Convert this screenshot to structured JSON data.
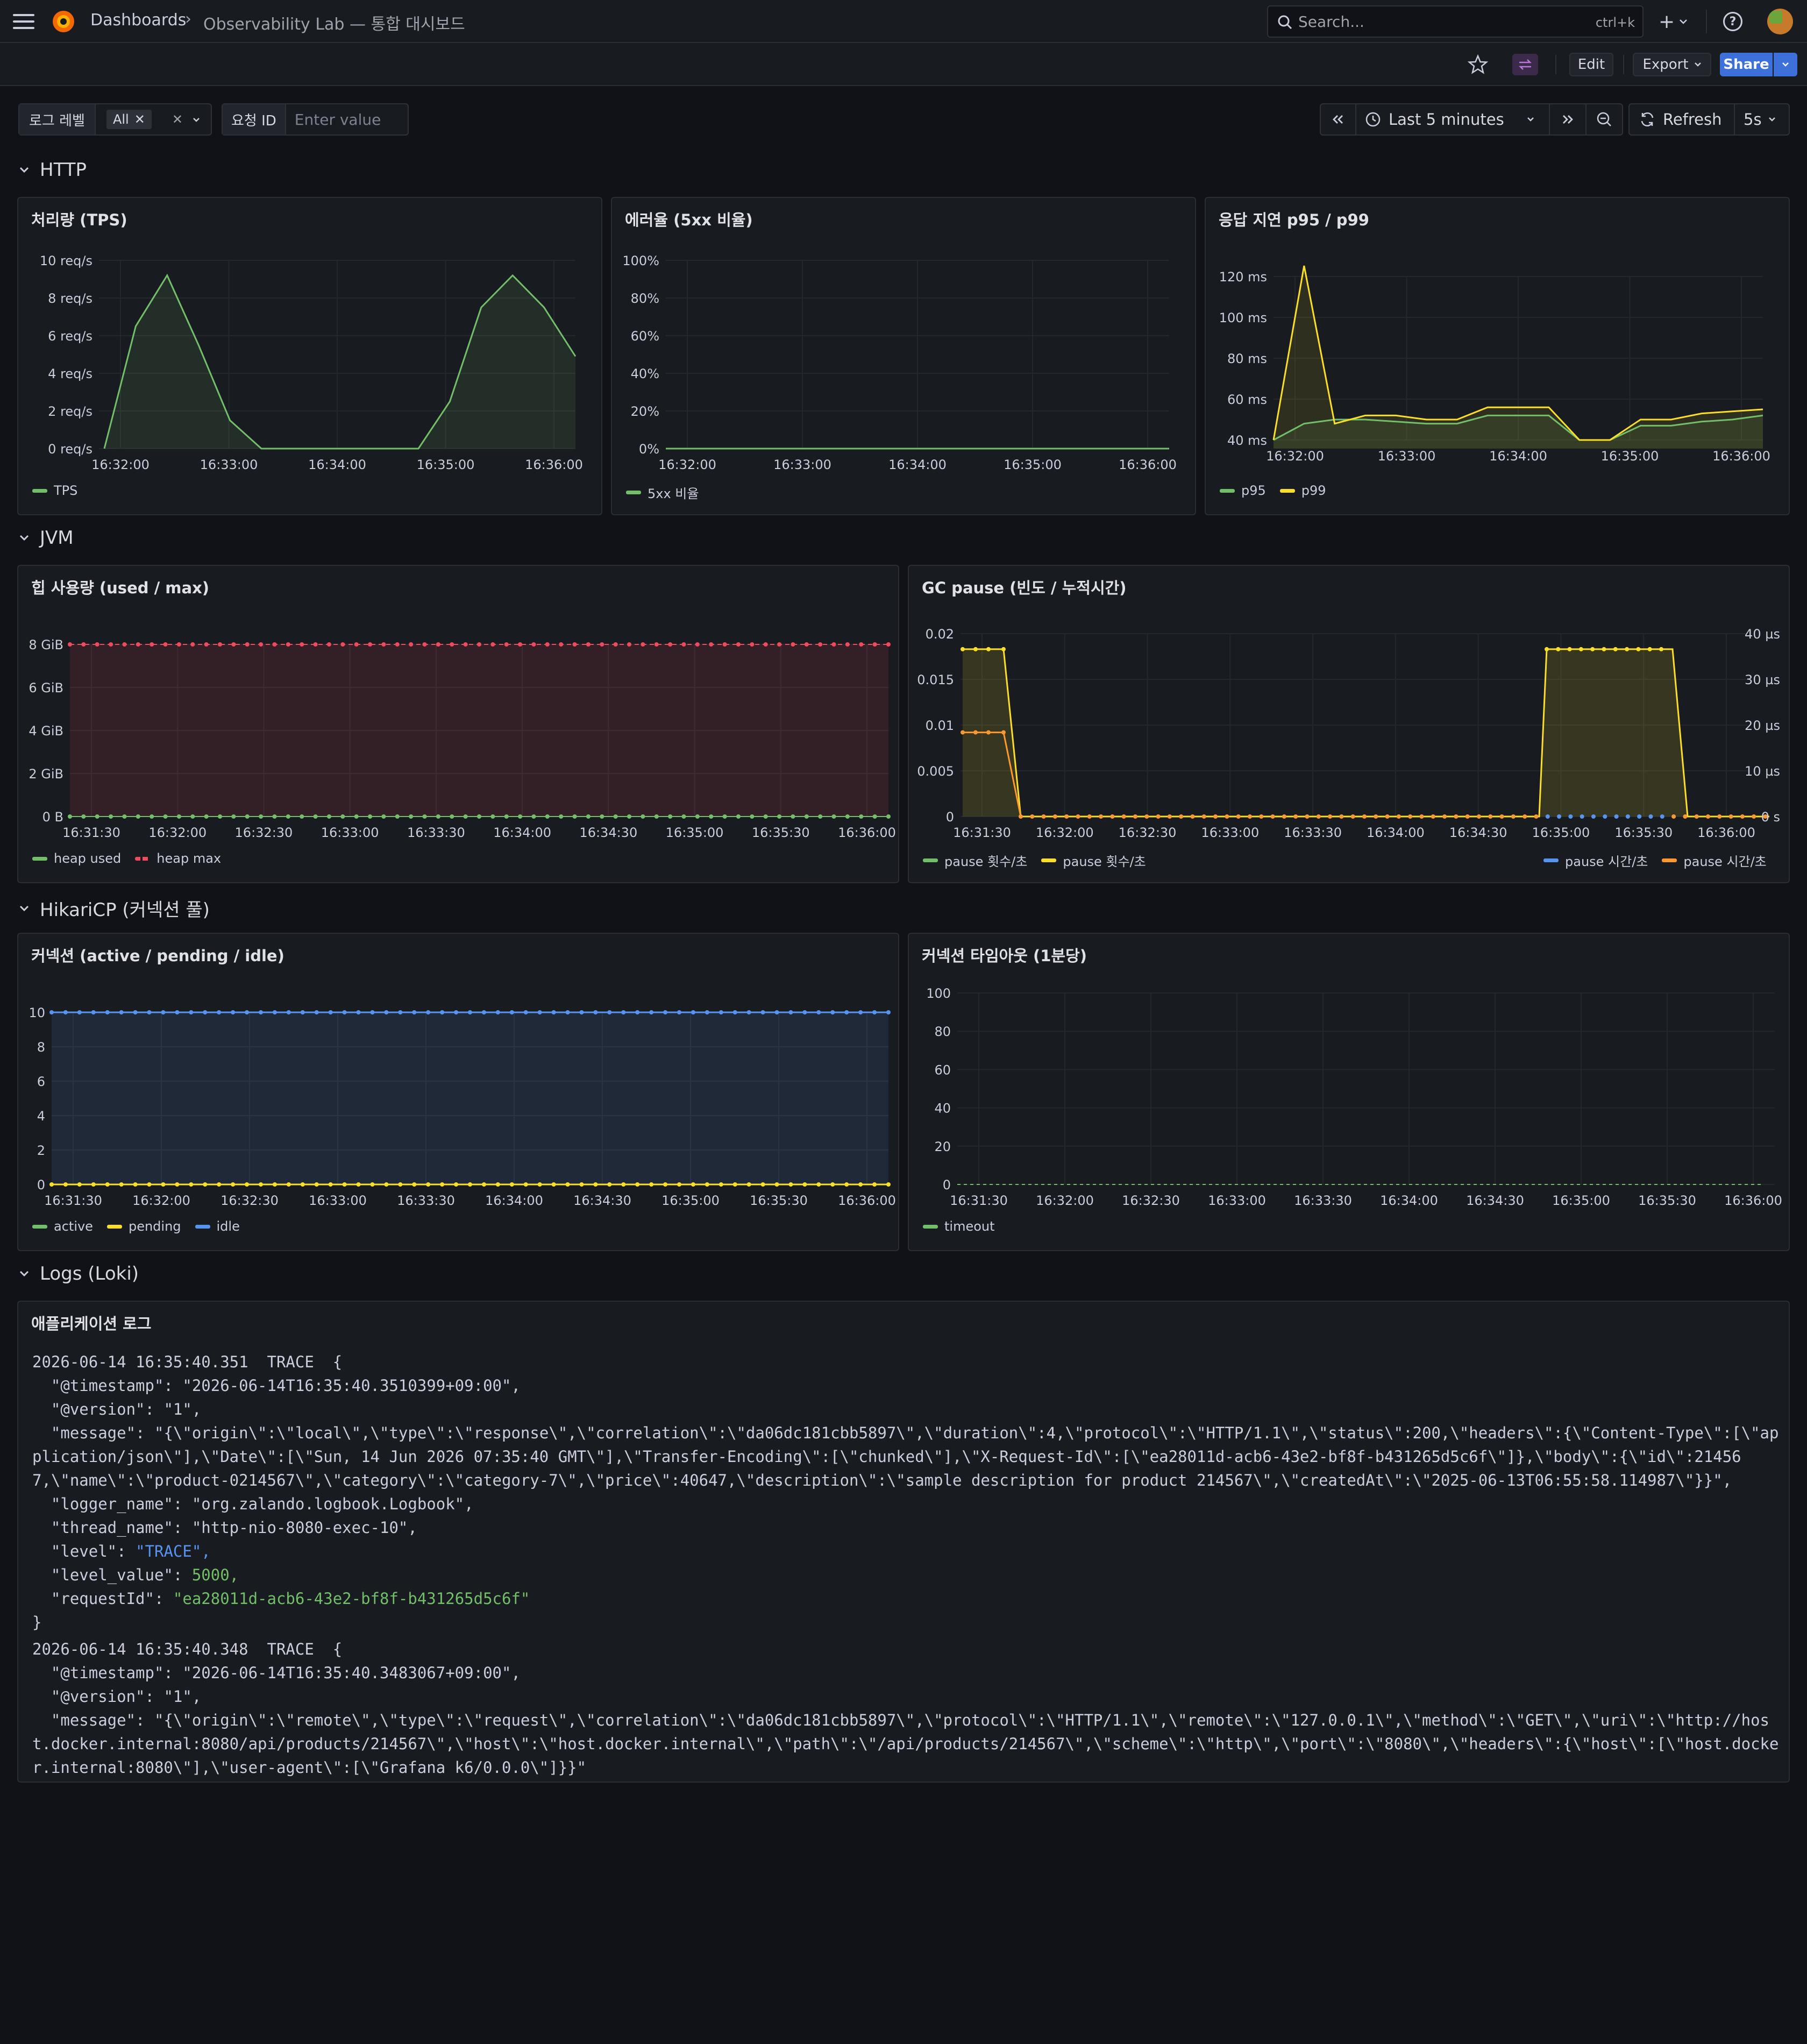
{
  "nav": {
    "breadcrumb_root": "Dashboards",
    "breadcrumb_separator": "›",
    "breadcrumb_current": "Observability Lab — 통합 대시보드",
    "search_placeholder": "Search...",
    "search_shortcut": "ctrl+k",
    "new_label": "+"
  },
  "toolbar": {
    "edit": "Edit",
    "export": "Export",
    "share": "Share"
  },
  "filters": {
    "log_level_label": "로그 레벨",
    "log_level_value": "All",
    "request_id_label": "요청 ID",
    "request_id_placeholder": "Enter value"
  },
  "time": {
    "range": "Last 5 minutes",
    "refresh": "Refresh",
    "interval": "5s"
  },
  "sections": {
    "http": "HTTP",
    "jvm": "JVM",
    "hikari": "HikariCP (커넥션 풀)",
    "logs": "Logs (Loki)"
  },
  "colors": {
    "green": "#73bf69",
    "yellow": "#fade2a",
    "red": "#f2495c",
    "blue": "#5794f2",
    "orange": "#ff9830"
  },
  "panels": {
    "tps": {
      "title": "처리량 (TPS)",
      "legend": [
        "TPS"
      ]
    },
    "err": {
      "title": "에러율 (5xx 비율)",
      "legend": [
        "5xx 비율"
      ]
    },
    "lat": {
      "title": "응답 지연 p95 / p99",
      "legend": [
        "p95",
        "p99"
      ]
    },
    "heap": {
      "title": "힙 사용량 (used / max)",
      "legend": [
        "heap used",
        "heap max"
      ]
    },
    "gc": {
      "title": "GC pause (빈도 / 누적시간)",
      "legend_left": [
        "pause 횟수/초",
        "pause 횟수/초"
      ],
      "legend_right": [
        "pause 시간/초",
        "pause 시간/초"
      ]
    },
    "conn": {
      "title": "커넥션 (active / pending / idle)",
      "legend": [
        "active",
        "pending",
        "idle"
      ]
    },
    "timeout": {
      "title": "커넥션 타임아웃 (1분당)",
      "legend": [
        "timeout"
      ]
    },
    "applog": {
      "title": "애플리케이션 로그"
    }
  },
  "chart_data": [
    {
      "type": "area",
      "title": "처리량 (TPS)",
      "x": [
        "16:31:40",
        "16:32:00",
        "16:32:10",
        "16:32:30",
        "16:32:50",
        "16:33:00",
        "16:33:20",
        "16:33:40",
        "16:34:00",
        "16:34:20",
        "16:34:40",
        "16:35:00",
        "16:35:20",
        "16:35:40",
        "16:36:00",
        "16:36:10"
      ],
      "series": [
        {
          "name": "TPS",
          "values": [
            0,
            6.5,
            9.2,
            5.5,
            1.5,
            0,
            0,
            0,
            0,
            0,
            0,
            2.5,
            7.5,
            9.2,
            7.5,
            4.9
          ]
        }
      ],
      "ylim": [
        0,
        10
      ],
      "yticks": [
        "10 req/s",
        "8 req/s",
        "6 req/s",
        "4 req/s",
        "2 req/s",
        "0 req/s"
      ],
      "xticks": [
        "16:32:00",
        "16:33:00",
        "16:34:00",
        "16:35:00",
        "16:36:00"
      ]
    },
    {
      "type": "line",
      "title": "에러율 (5xx 비율)",
      "series": [
        {
          "name": "5xx 비율",
          "values": [
            0,
            0
          ]
        }
      ],
      "ylim": [
        0,
        100
      ],
      "yticks": [
        "100%",
        "80%",
        "60%",
        "40%",
        "20%",
        "0%"
      ],
      "xticks": [
        "16:32:00",
        "16:33:00",
        "16:34:00",
        "16:35:00",
        "16:36:00"
      ]
    },
    {
      "type": "line",
      "title": "응답 지연 p95 / p99",
      "series": [
        {
          "name": "p95",
          "values": [
            40,
            48,
            50,
            50,
            49,
            48,
            48,
            52,
            52,
            52,
            40,
            40,
            47,
            47,
            49,
            50,
            52
          ]
        },
        {
          "name": "p99",
          "values": [
            40,
            127,
            48,
            52,
            52,
            50,
            50,
            56,
            56,
            56,
            40,
            40,
            50,
            50,
            53,
            54,
            55
          ]
        }
      ],
      "yticks": [
        "120 ms",
        "100 ms",
        "80 ms",
        "60 ms",
        "40 ms"
      ],
      "xticks": [
        "16:32:00",
        "16:33:00",
        "16:34:00",
        "16:35:00",
        "16:36:00"
      ]
    },
    {
      "type": "area",
      "title": "힙 사용량 (used / max)",
      "series": [
        {
          "name": "heap used",
          "values": [
            0,
            0
          ]
        },
        {
          "name": "heap max",
          "values": [
            8,
            8
          ]
        }
      ],
      "yticks": [
        "8 GiB",
        "6 GiB",
        "4 GiB",
        "2 GiB",
        "0 B"
      ],
      "xticks": [
        "16:31:30",
        "16:32:00",
        "16:32:30",
        "16:33:00",
        "16:33:30",
        "16:34:00",
        "16:34:30",
        "16:35:00",
        "16:35:30",
        "16:36:00"
      ]
    },
    {
      "type": "line",
      "title": "GC pause (빈도 / 누적시간)",
      "series": [
        {
          "name": "pause 횟수/초 (yellow)",
          "values": [
            0.0183,
            0.0183,
            0.0183,
            0,
            0,
            0,
            0.0183,
            0.0183,
            0.0183,
            0
          ]
        },
        {
          "name": "pause 횟수/초 (orange)",
          "values": [
            0.0092,
            0.0092,
            0.0092,
            0,
            0,
            0,
            0.0092,
            0.0092,
            0.0092,
            0
          ]
        }
      ],
      "yticks_left": [
        "0.02",
        "0.015",
        "0.01",
        "0.005",
        "0"
      ],
      "yticks_right": [
        "40 µs",
        "30 µs",
        "20 µs",
        "10 µs",
        "0 s"
      ],
      "xticks": [
        "16:31:30",
        "16:32:00",
        "16:32:30",
        "16:33:00",
        "16:33:30",
        "16:34:00",
        "16:34:30",
        "16:35:00",
        "16:35:30",
        "16:36:00"
      ]
    },
    {
      "type": "line",
      "title": "커넥션 (active / pending / idle)",
      "series": [
        {
          "name": "active",
          "values": [
            0,
            0
          ]
        },
        {
          "name": "pending",
          "values": [
            0,
            0
          ]
        },
        {
          "name": "idle",
          "values": [
            10,
            10
          ]
        }
      ],
      "yticks": [
        "10",
        "8",
        "6",
        "4",
        "2",
        "0"
      ],
      "xticks": [
        "16:31:30",
        "16:32:00",
        "16:32:30",
        "16:33:00",
        "16:33:30",
        "16:34:00",
        "16:34:30",
        "16:35:00",
        "16:35:30",
        "16:36:00"
      ]
    },
    {
      "type": "line",
      "title": "커넥션 타임아웃 (1분당)",
      "series": [
        {
          "name": "timeout",
          "values": [
            0,
            0
          ]
        }
      ],
      "yticks": [
        "100",
        "80",
        "60",
        "40",
        "20",
        "0"
      ],
      "xticks": [
        "16:31:30",
        "16:32:00",
        "16:32:30",
        "16:33:00",
        "16:33:30",
        "16:34:00",
        "16:34:30",
        "16:35:00",
        "16:35:30",
        "16:36:00"
      ]
    }
  ],
  "logs": [
    {
      "head": "2026-06-14 16:35:40.351  TRACE  {",
      "lines": [
        {
          "k": "  \"@timestamp\": ",
          "v": "\"2026-06-14T16:35:40.3510399+09:00\",",
          "c": ""
        },
        {
          "k": "  \"@version\": ",
          "v": "\"1\",",
          "c": ""
        },
        {
          "k": "  \"message\": ",
          "v": "\"{\\\"origin\\\":\\\"local\\\",\\\"type\\\":\\\"response\\\",\\\"correlation\\\":\\\"da06dc181cbb5897\\\",\\\"duration\\\":4,\\\"protocol\\\":\\\"HTTP/1.1\\\",\\\"status\\\":200,\\\"headers\\\":{\\\"Content-Type\\\":[\\\"application/json\\\"],\\\"Date\\\":[\\\"Sun, 14 Jun 2026 07:35:40 GMT\\\"],\\\"Transfer-Encoding\\\":[\\\"chunked\\\"],\\\"X-Request-Id\\\":[\\\"ea28011d-acb6-43e2-bf8f-b431265d5c6f\\\"]},\\\"body\\\":{\\\"id\\\":214567,\\\"name\\\":\\\"product-0214567\\\",\\\"category\\\":\\\"category-7\\\",\\\"price\\\":40647,\\\"description\\\":\\\"sample description for product 214567\\\",\\\"createdAt\\\":\\\"2025-06-13T06:55:58.114987\\\"}}\",",
          "c": "wrap"
        },
        {
          "k": "  \"logger_name\": ",
          "v": "\"org.zalando.logbook.Logbook\",",
          "c": ""
        },
        {
          "k": "  \"thread_name\": ",
          "v": "\"http-nio-8080-exec-10\",",
          "c": ""
        },
        {
          "k": "  \"level\": ",
          "v": "\"TRACE\",",
          "c": "b"
        },
        {
          "k": "  \"level_value\": ",
          "v": "5000,",
          "c": "g"
        },
        {
          "k": "  \"requestId\": ",
          "v": "\"ea28011d-acb6-43e2-bf8f-b431265d5c6f\"",
          "c": "g"
        },
        {
          "k": "}",
          "v": "",
          "c": ""
        }
      ]
    },
    {
      "head": "2026-06-14 16:35:40.348  TRACE  {",
      "lines": [
        {
          "k": "  \"@timestamp\": ",
          "v": "\"2026-06-14T16:35:40.3483067+09:00\",",
          "c": ""
        },
        {
          "k": "  \"@version\": ",
          "v": "\"1\",",
          "c": ""
        },
        {
          "k": "  \"message\": ",
          "v": "\"{\\\"origin\\\":\\\"remote\\\",\\\"type\\\":\\\"request\\\",\\\"correlation\\\":\\\"da06dc181cbb5897\\\",\\\"protocol\\\":\\\"HTTP/1.1\\\",\\\"remote\\\":\\\"127.0.0.1\\\",\\\"method\\\":\\\"GET\\\",\\\"uri\\\":\\\"http://host.docker.internal:8080/api/products/214567\\\",\\\"host\\\":\\\"host.docker.internal\\\",\\\"path\\\":\\\"/api/products/214567\\\",\\\"scheme\\\":\\\"http\\\",\\\"port\\\":\\\"8080\\\",\\\"headers\\\":{\\\"host\\\":[\\\"host.docker.internal:8080\\\"],\\\"user-agent\\\":[\\\"Grafana k6/0.0.0\\\"]}}\"",
          "c": "wrap"
        }
      ]
    }
  ]
}
